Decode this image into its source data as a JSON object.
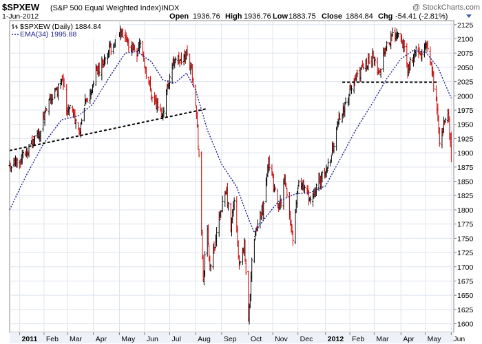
{
  "header": {
    "symbol": "$SPXEW",
    "description": "(S&P 500 Equal Weighted Index)",
    "exchange": "INDX",
    "watermark": "@ StockCharts.com",
    "date": "1-Jun-2012",
    "open_label": "Open",
    "open": "1936.76",
    "high_label": "High",
    "high": "1936.76",
    "low_label": "Low",
    "low": "1883.75",
    "close_label": "Close",
    "close": "1884.84",
    "chg_label": "Chg",
    "chg": "-54.41 (-2.81%)"
  },
  "legend": {
    "price": "$SPXEW (Daily) 1884.84",
    "ema": "EMA(34) 1995.88"
  },
  "colors": {
    "background": "#ffffff",
    "plot_bg": "#ffffff",
    "grid": "#dde3ee",
    "axis": "#808080",
    "frame_bg": "#eef2f8",
    "up_bar": "#000000",
    "down_bar": "#cc0000",
    "ema": "#1a1a8c",
    "trendline": "#000000",
    "title": "#000000",
    "chg_negative": "#000000",
    "arrow": "#3a5fb0"
  },
  "chart_data": {
    "type": "line",
    "subtype": "ohlc-bars",
    "title": "$SPXEW (S&P 500 Equal Weighted Index) INDX",
    "xlabel": "",
    "ylabel": "",
    "x_tick_labels": [
      "2011",
      "Feb",
      "Mar",
      "Apr",
      "May",
      "Jun",
      "Jul",
      "Aug",
      "Sep",
      "Oct",
      "Nov",
      "Dec",
      "2012",
      "Feb",
      "Mar",
      "Apr",
      "May",
      "Jun"
    ],
    "x_tick_dates": [
      "2011-01-03",
      "2011-02-01",
      "2011-03-01",
      "2011-04-01",
      "2011-05-02",
      "2011-06-01",
      "2011-07-01",
      "2011-08-01",
      "2011-09-01",
      "2011-10-03",
      "2011-11-01",
      "2011-12-01",
      "2012-01-03",
      "2012-02-01",
      "2012-03-01",
      "2012-04-02",
      "2012-05-01",
      "2012-06-01"
    ],
    "y_ticks": [
      1600,
      1625,
      1650,
      1675,
      1700,
      1725,
      1750,
      1775,
      1800,
      1825,
      1850,
      1875,
      1900,
      1925,
      1950,
      1975,
      2000,
      2025,
      2050,
      2075,
      2100,
      2125
    ],
    "ylim": [
      1585,
      2132
    ],
    "xlim": [
      "2010-12-22",
      "2012-06-04"
    ],
    "grid": true,
    "legend_position": "top-left",
    "series": [
      {
        "name": "$SPXEW (Daily) 1884.84",
        "kind": "price",
        "points": [
          [
            "2010-12-22",
            1875
          ],
          [
            "2010-12-29",
            1882
          ],
          [
            "2011-01-04",
            1890
          ],
          [
            "2011-01-10",
            1900
          ],
          [
            "2011-01-18",
            1918
          ],
          [
            "2011-01-27",
            1938
          ],
          [
            "2011-02-04",
            1975
          ],
          [
            "2011-02-10",
            1998
          ],
          [
            "2011-02-17",
            2010
          ],
          [
            "2011-02-23",
            2040
          ],
          [
            "2011-02-28",
            1970
          ],
          [
            "2011-03-04",
            1988
          ],
          [
            "2011-03-10",
            1958
          ],
          [
            "2011-03-16",
            1935
          ],
          [
            "2011-03-22",
            1985
          ],
          [
            "2011-03-28",
            2002
          ],
          [
            "2011-04-04",
            2042
          ],
          [
            "2011-04-12",
            2058
          ],
          [
            "2011-04-20",
            2080
          ],
          [
            "2011-04-27",
            2098
          ],
          [
            "2011-05-03",
            2112
          ],
          [
            "2011-05-09",
            2095
          ],
          [
            "2011-05-16",
            2088
          ],
          [
            "2011-05-23",
            2078
          ],
          [
            "2011-05-27",
            2095
          ],
          [
            "2011-06-01",
            2055
          ],
          [
            "2011-06-08",
            2010
          ],
          [
            "2011-06-16",
            1982
          ],
          [
            "2011-06-22",
            1965
          ],
          [
            "2011-06-29",
            2022
          ],
          [
            "2011-07-07",
            2068
          ],
          [
            "2011-07-14",
            2058
          ],
          [
            "2011-07-21",
            2075
          ],
          [
            "2011-07-27",
            2048
          ],
          [
            "2011-08-01",
            1990
          ],
          [
            "2011-08-05",
            1895
          ],
          [
            "2011-08-08",
            1752
          ],
          [
            "2011-08-10",
            1680
          ],
          [
            "2011-08-15",
            1760
          ],
          [
            "2011-08-18",
            1700
          ],
          [
            "2011-08-24",
            1740
          ],
          [
            "2011-08-31",
            1800
          ],
          [
            "2011-09-07",
            1830
          ],
          [
            "2011-09-12",
            1765
          ],
          [
            "2011-09-16",
            1820
          ],
          [
            "2011-09-22",
            1700
          ],
          [
            "2011-09-28",
            1740
          ],
          [
            "2011-10-03",
            1610
          ],
          [
            "2011-10-07",
            1710
          ],
          [
            "2011-10-13",
            1770
          ],
          [
            "2011-10-21",
            1810
          ],
          [
            "2011-10-27",
            1892
          ],
          [
            "2011-11-02",
            1840
          ],
          [
            "2011-11-09",
            1802
          ],
          [
            "2011-11-15",
            1850
          ],
          [
            "2011-11-25",
            1752
          ],
          [
            "2011-12-01",
            1845
          ],
          [
            "2011-12-09",
            1842
          ],
          [
            "2011-12-16",
            1815
          ],
          [
            "2011-12-23",
            1842
          ],
          [
            "2012-01-03",
            1865
          ],
          [
            "2012-01-11",
            1905
          ],
          [
            "2012-01-20",
            1968
          ],
          [
            "2012-01-31",
            2002
          ],
          [
            "2012-02-09",
            2032
          ],
          [
            "2012-02-21",
            2058
          ],
          [
            "2012-03-01",
            2068
          ],
          [
            "2012-03-06",
            2032
          ],
          [
            "2012-03-13",
            2085
          ],
          [
            "2012-03-20",
            2098
          ],
          [
            "2012-03-27",
            2112
          ],
          [
            "2012-04-02",
            2110
          ],
          [
            "2012-04-10",
            2045
          ],
          [
            "2012-04-18",
            2078
          ],
          [
            "2012-04-26",
            2068
          ],
          [
            "2012-05-02",
            2088
          ],
          [
            "2012-05-09",
            2042
          ],
          [
            "2012-05-16",
            1965
          ],
          [
            "2012-05-18",
            1910
          ],
          [
            "2012-05-24",
            1960
          ],
          [
            "2012-05-29",
            1960
          ],
          [
            "2012-06-01",
            1885
          ]
        ]
      },
      {
        "name": "EMA(34) 1995.88",
        "kind": "ema",
        "points": [
          [
            "2010-12-22",
            1800
          ],
          [
            "2011-01-10",
            1858
          ],
          [
            "2011-01-31",
            1915
          ],
          [
            "2011-02-22",
            1958
          ],
          [
            "2011-03-14",
            1965
          ],
          [
            "2011-03-31",
            1985
          ],
          [
            "2011-04-21",
            2035
          ],
          [
            "2011-05-09",
            2075
          ],
          [
            "2011-05-23",
            2078
          ],
          [
            "2011-06-09",
            2060
          ],
          [
            "2011-06-23",
            2028
          ],
          [
            "2011-07-07",
            2022
          ],
          [
            "2011-07-21",
            2040
          ],
          [
            "2011-08-01",
            2010
          ],
          [
            "2011-08-15",
            1940
          ],
          [
            "2011-09-01",
            1880
          ],
          [
            "2011-09-19",
            1840
          ],
          [
            "2011-10-03",
            1785
          ],
          [
            "2011-10-10",
            1760
          ],
          [
            "2011-10-24",
            1788
          ],
          [
            "2011-11-08",
            1815
          ],
          [
            "2011-11-28",
            1828
          ],
          [
            "2011-12-15",
            1830
          ],
          [
            "2012-01-03",
            1842
          ],
          [
            "2012-01-20",
            1888
          ],
          [
            "2012-02-08",
            1940
          ],
          [
            "2012-02-27",
            1985
          ],
          [
            "2012-03-16",
            2030
          ],
          [
            "2012-04-02",
            2065
          ],
          [
            "2012-04-17",
            2080
          ],
          [
            "2012-05-02",
            2076
          ],
          [
            "2012-05-16",
            2050
          ],
          [
            "2012-06-01",
            1996
          ]
        ]
      }
    ],
    "annotations": [
      {
        "kind": "trendline",
        "from": [
          "2010-12-22",
          1904
        ],
        "to": [
          "2011-08-13",
          1977
        ]
      },
      {
        "kind": "trendline",
        "from": [
          "2012-01-23",
          2024
        ],
        "to": [
          "2012-05-16",
          2024
        ]
      }
    ]
  }
}
